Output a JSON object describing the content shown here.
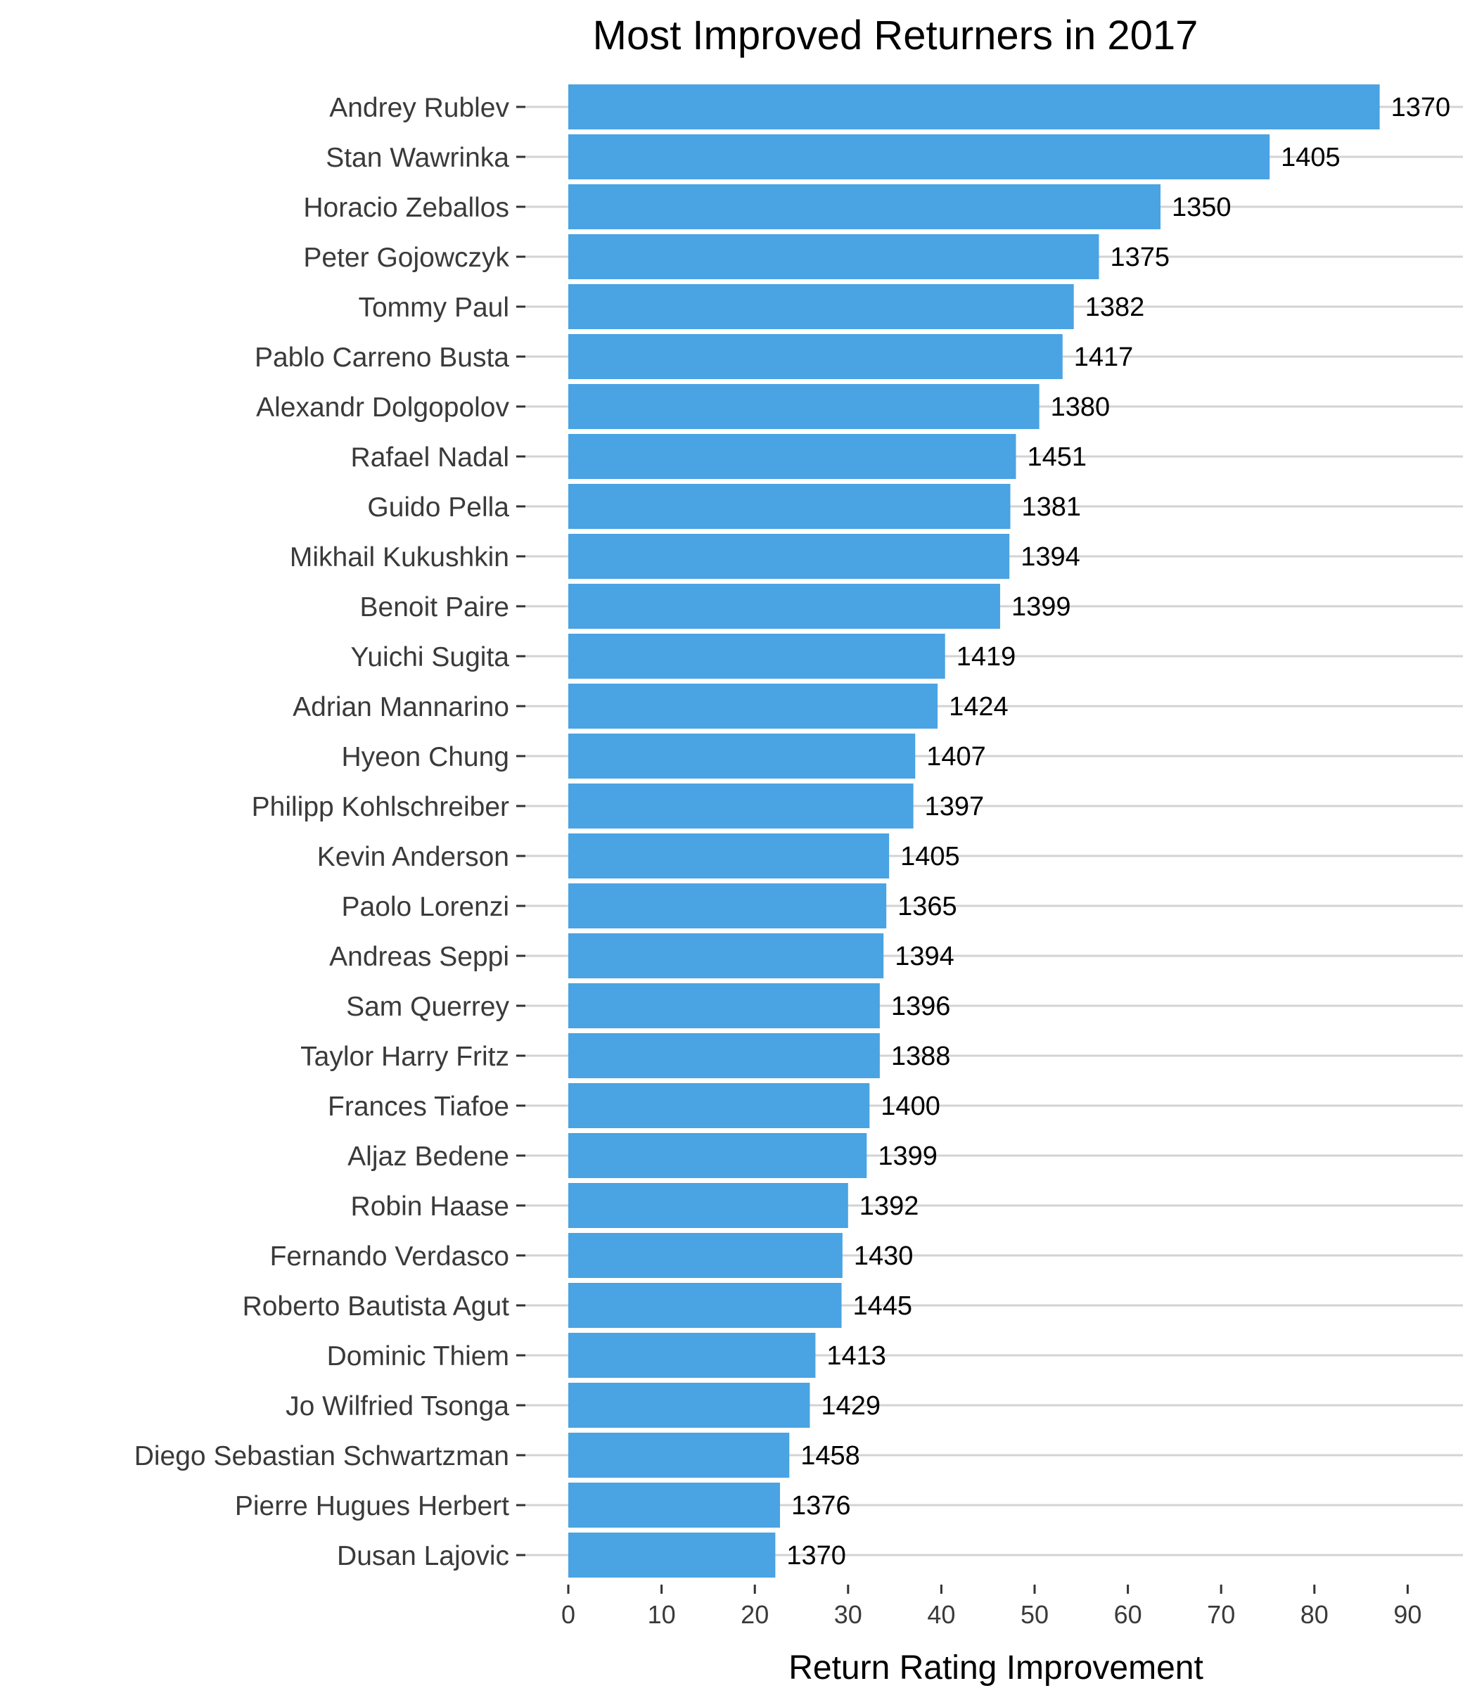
{
  "chart_data": {
    "type": "bar",
    "orientation": "horizontal",
    "title": "Most Improved Returners in 2017",
    "xlabel": "Return Rating Improvement",
    "ylabel": "",
    "xlim": [
      0,
      95
    ],
    "xticks": [
      0,
      10,
      20,
      30,
      40,
      50,
      60,
      70,
      80,
      90
    ],
    "grid": "horizontal lines at each category",
    "bar_color": "#4aa3e2",
    "categories": [
      "Andrey Rublev",
      "Stan Wawrinka",
      "Horacio Zeballos",
      "Peter Gojowczyk",
      "Tommy Paul",
      "Pablo Carreno Busta",
      "Alexandr Dolgopolov",
      "Rafael Nadal",
      "Guido Pella",
      "Mikhail Kukushkin",
      "Benoit Paire",
      "Yuichi Sugita",
      "Adrian Mannarino",
      "Hyeon Chung",
      "Philipp Kohlschreiber",
      "Kevin Anderson",
      "Paolo Lorenzi",
      "Andreas Seppi",
      "Sam Querrey",
      "Taylor Harry Fritz",
      "Frances Tiafoe",
      "Aljaz Bedene",
      "Robin Haase",
      "Fernando Verdasco",
      "Roberto Bautista Agut",
      "Dominic Thiem",
      "Jo Wilfried Tsonga",
      "Diego Sebastian Schwartzman",
      "Pierre Hugues Herbert",
      "Dusan Lajovic"
    ],
    "values": [
      87.0,
      75.2,
      63.5,
      56.9,
      54.2,
      53.0,
      50.5,
      48.0,
      47.4,
      47.3,
      46.3,
      40.4,
      39.6,
      37.2,
      37.0,
      34.4,
      34.1,
      33.8,
      33.4,
      33.4,
      32.3,
      32.0,
      30.0,
      29.4,
      29.3,
      26.5,
      25.9,
      23.7,
      22.7,
      22.2
    ],
    "data_labels": [
      "1370",
      "1405",
      "1350",
      "1375",
      "1382",
      "1417",
      "1380",
      "1451",
      "1381",
      "1394",
      "1399",
      "1419",
      "1424",
      "1407",
      "1397",
      "1405",
      "1365",
      "1394",
      "1396",
      "1388",
      "1400",
      "1399",
      "1392",
      "1430",
      "1445",
      "1413",
      "1429",
      "1458",
      "1376",
      "1370"
    ]
  }
}
